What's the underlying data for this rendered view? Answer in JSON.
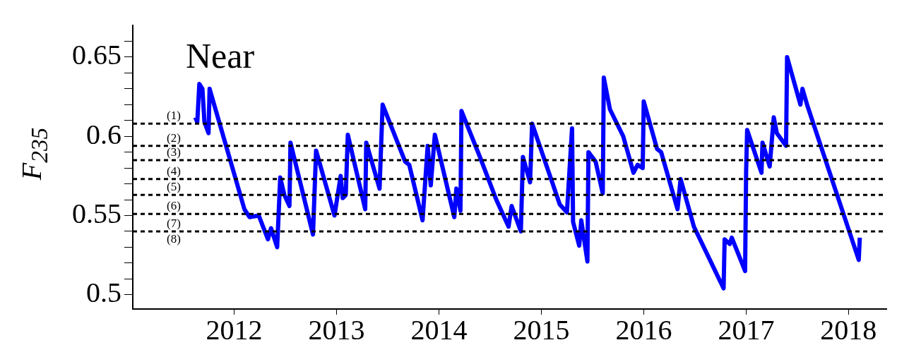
{
  "chart_data": {
    "type": "line",
    "title": "Near",
    "ylabel": "F$_{235}$",
    "xlim": [
      2011.01,
      2018.37
    ],
    "xticks": [
      2012,
      2013,
      2014,
      2015,
      2016,
      2017,
      2018
    ],
    "ylim": [
      0.491,
      0.67
    ],
    "yticks": [
      {
        "value": 0.5,
        "label": "0.5"
      },
      {
        "value": 0.51,
        "label": null
      },
      {
        "value": 0.52,
        "label": null
      },
      {
        "value": 0.53,
        "label": null
      },
      {
        "value": 0.54,
        "label": null
      },
      {
        "value": 0.55,
        "label": "0.55"
      },
      {
        "value": 0.56,
        "label": null
      },
      {
        "value": 0.57,
        "label": null
      },
      {
        "value": 0.58,
        "label": null
      },
      {
        "value": 0.59,
        "label": null
      },
      {
        "value": 0.6,
        "label": "0.6"
      },
      {
        "value": 0.61,
        "label": null
      },
      {
        "value": 0.62,
        "label": null
      },
      {
        "value": 0.63,
        "label": null
      },
      {
        "value": 0.64,
        "label": null
      },
      {
        "value": 0.65,
        "label": "0.65"
      },
      {
        "value": 0.66,
        "label": null
      }
    ],
    "series": [
      {
        "color": "#0000ff",
        "x": [
          2011.62,
          2011.64,
          2011.66,
          2011.69,
          2011.71,
          2011.75,
          2011.76,
          2012.1,
          2012.15,
          2012.24,
          2012.33,
          2012.36,
          2012.42,
          2012.45,
          2012.49,
          2012.54,
          2012.55,
          2012.77,
          2012.8,
          2012.98,
          2013.04,
          2013.06,
          2013.09,
          2013.11,
          2013.28,
          2013.29,
          2013.42,
          2013.45,
          2013.67,
          2013.71,
          2013.84,
          2013.89,
          2013.92,
          2013.96,
          2014.15,
          2014.17,
          2014.21,
          2014.22,
          2014.4,
          2014.56,
          2014.68,
          2014.71,
          2014.8,
          2014.82,
          2014.89,
          2014.91,
          2015.18,
          2015.25,
          2015.3,
          2015.31,
          2015.37,
          2015.39,
          2015.45,
          2015.46,
          2015.53,
          2015.6,
          2015.61,
          2015.67,
          2015.8,
          2015.9,
          2015.94,
          2015.99,
          2016.0,
          2016.13,
          2016.17,
          2016.33,
          2016.36,
          2016.49,
          2016.78,
          2016.79,
          2016.84,
          2016.86,
          2016.99,
          2017.0,
          2017.01,
          2017.15,
          2017.16,
          2017.23,
          2017.27,
          2017.3,
          2017.39,
          2017.4,
          2017.53,
          2017.55,
          2017.6,
          2018.1,
          2018.11
        ],
        "values": [
          0.612,
          0.609,
          0.633,
          0.63,
          0.609,
          0.602,
          0.63,
          0.554,
          0.549,
          0.55,
          0.535,
          0.542,
          0.53,
          0.574,
          0.563,
          0.556,
          0.596,
          0.538,
          0.591,
          0.55,
          0.575,
          0.561,
          0.563,
          0.601,
          0.554,
          0.596,
          0.567,
          0.62,
          0.584,
          0.582,
          0.547,
          0.594,
          0.569,
          0.601,
          0.549,
          0.567,
          0.553,
          0.616,
          0.587,
          0.56,
          0.543,
          0.556,
          0.54,
          0.587,
          0.571,
          0.608,
          0.557,
          0.552,
          0.605,
          0.546,
          0.531,
          0.547,
          0.521,
          0.59,
          0.584,
          0.564,
          0.637,
          0.617,
          0.6,
          0.577,
          0.582,
          0.58,
          0.622,
          0.592,
          0.59,
          0.554,
          0.573,
          0.543,
          0.504,
          0.535,
          0.532,
          0.536,
          0.515,
          0.578,
          0.604,
          0.577,
          0.596,
          0.581,
          0.612,
          0.602,
          0.594,
          0.65,
          0.62,
          0.63,
          0.619,
          0.522,
          0.536
        ]
      }
    ],
    "ref_lines": [
      {
        "axis": "y",
        "value": 0.608,
        "color": "#000000",
        "line_style": "dashed"
      },
      {
        "axis": "y",
        "value": 0.594,
        "color": "#000000",
        "line_style": "dashed"
      },
      {
        "axis": "y",
        "value": 0.585,
        "color": "#000000",
        "line_style": "dashed"
      },
      {
        "axis": "y",
        "value": 0.573,
        "color": "#000000",
        "line_style": "dashed"
      },
      {
        "axis": "y",
        "value": 0.563,
        "color": "#000000",
        "line_style": "dashed"
      },
      {
        "axis": "y",
        "value": 0.551,
        "color": "#000000",
        "line_style": "dashed"
      },
      {
        "axis": "y",
        "value": 0.54,
        "color": "#000000",
        "line_style": "dashed"
      }
    ],
    "annotations": [
      "(1)",
      "(2)",
      "(3)",
      "(4)",
      "(5)",
      "(6)",
      "(7)",
      "(8)"
    ]
  }
}
